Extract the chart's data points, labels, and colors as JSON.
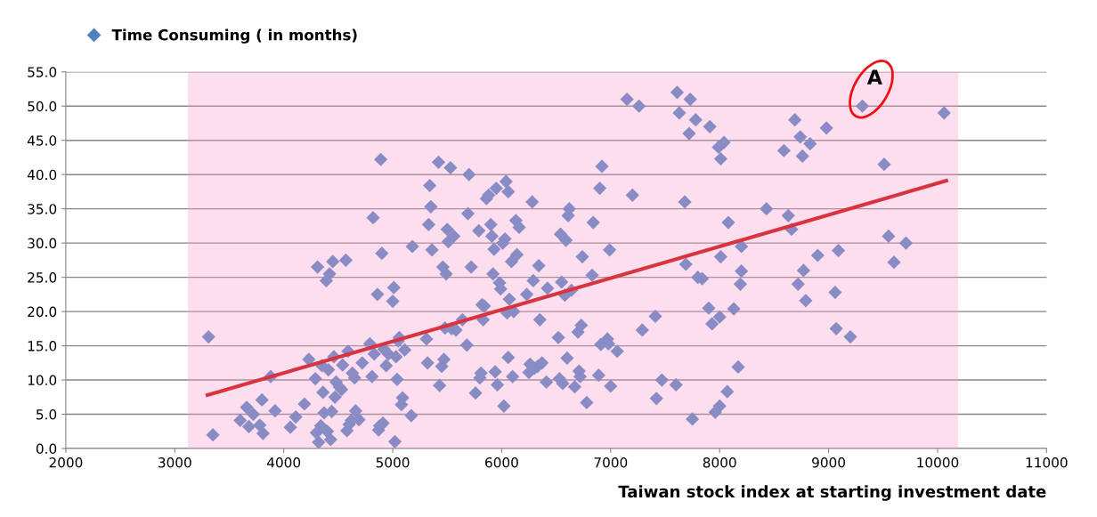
{
  "chart_data": {
    "type": "scatter",
    "xlabel": "Taiwan stock index at starting investment date",
    "xlim": [
      2000,
      11000
    ],
    "xticks": [
      2000,
      3000,
      4000,
      5000,
      6000,
      7000,
      8000,
      9000,
      10000,
      11000
    ],
    "ylim": [
      0,
      55
    ],
    "yticks": [
      {
        "value": 0,
        "label": "0.0"
      },
      {
        "value": 5,
        "label": "5.0"
      },
      {
        "value": 10,
        "label": "10.0"
      },
      {
        "value": 15,
        "label": "15.0"
      },
      {
        "value": 20,
        "label": "20.0"
      },
      {
        "value": 25,
        "label": "25.0"
      },
      {
        "value": 30,
        "label": "30.0"
      },
      {
        "value": 35,
        "label": "35.0"
      },
      {
        "value": 40,
        "label": "40.0"
      },
      {
        "value": 45,
        "label": "45.0"
      },
      {
        "value": 50,
        "label": "50.0"
      },
      {
        "value": 55,
        "label": "55.0"
      }
    ],
    "grid": "y",
    "legend": "top left",
    "marker": "diamond",
    "series": [
      {
        "name": "Time Consuming ( in months)",
        "color": "#4f81bd",
        "x": [
          3310,
          3350,
          3600,
          3660,
          3680,
          3720,
          3780,
          3800,
          3810,
          3880,
          3920,
          4060,
          4110,
          4190,
          4230,
          4290,
          4300,
          4310,
          4320,
          4340,
          4350,
          4360,
          4370,
          4390,
          4400,
          4410,
          4420,
          4430,
          4440,
          4450,
          4460,
          4470,
          4480,
          4510,
          4530,
          4540,
          4570,
          4580,
          4590,
          4600,
          4620,
          4630,
          4650,
          4660,
          4690,
          4720,
          4790,
          4810,
          4820,
          4830,
          4860,
          4870,
          4880,
          4890,
          4900,
          4910,
          4920,
          4940,
          4960,
          5000,
          5010,
          5020,
          5030,
          5040,
          5050,
          5060,
          5080,
          5090,
          5110,
          5170,
          5180,
          5310,
          5320,
          5330,
          5340,
          5350,
          5360,
          5420,
          5430,
          5450,
          5460,
          5470,
          5480,
          5490,
          5500,
          5510,
          5530,
          5540,
          5560,
          5580,
          5640,
          5680,
          5690,
          5700,
          5720,
          5760,
          5790,
          5800,
          5810,
          5820,
          5830,
          5840,
          5860,
          5880,
          5900,
          5910,
          5920,
          5930,
          5940,
          5950,
          5960,
          5980,
          5990,
          6010,
          6020,
          6030,
          6040,
          6050,
          6060,
          6060,
          6070,
          6090,
          6100,
          6110,
          6130,
          6140,
          6160,
          6230,
          6250,
          6260,
          6280,
          6290,
          6300,
          6330,
          6340,
          6350,
          6370,
          6410,
          6420,
          6520,
          6530,
          6540,
          6550,
          6560,
          6580,
          6590,
          6600,
          6610,
          6620,
          6640,
          6670,
          6700,
          6710,
          6720,
          6730,
          6740,
          6780,
          6830,
          6840,
          6890,
          6900,
          6910,
          6920,
          6970,
          6980,
          6990,
          7000,
          7060,
          7150,
          7200,
          7260,
          7290,
          7410,
          7420,
          7470,
          7600,
          7610,
          7630,
          7680,
          7690,
          7720,
          7730,
          7750,
          7780,
          7800,
          7840,
          7900,
          7910,
          7930,
          7960,
          7990,
          8000,
          8000,
          8010,
          8010,
          8040,
          8070,
          8080,
          8130,
          8170,
          8190,
          8200,
          8200,
          8430,
          8590,
          8630,
          8660,
          8690,
          8720,
          8740,
          8760,
          8770,
          8790,
          8830,
          8900,
          8980,
          9060,
          9070,
          9090,
          9200,
          9310,
          9510,
          9550,
          9600,
          9710,
          10060
        ],
        "values": [
          16.3,
          2.0,
          4.1,
          6.0,
          3.2,
          5.0,
          3.4,
          7.1,
          2.2,
          10.5,
          5.5,
          3.1,
          4.6,
          6.5,
          13.0,
          10.2,
          2.3,
          26.5,
          0.9,
          3.3,
          12.1,
          8.2,
          5.2,
          24.5,
          2.5,
          11.5,
          25.5,
          1.3,
          5.4,
          27.3,
          13.4,
          7.5,
          9.7,
          9.0,
          8.6,
          12.2,
          27.5,
          2.6,
          14.2,
          3.5,
          4.1,
          11.0,
          10.3,
          5.5,
          4.2,
          12.5,
          15.3,
          10.5,
          33.7,
          13.8,
          22.5,
          2.7,
          3.3,
          42.2,
          28.5,
          3.7,
          14.5,
          12.1,
          13.8,
          21.5,
          23.5,
          1.0,
          13.4,
          10.1,
          15.7,
          16.2,
          6.4,
          7.4,
          14.4,
          4.8,
          29.5,
          16.0,
          12.5,
          32.7,
          38.4,
          35.3,
          29.0,
          41.8,
          9.2,
          12.0,
          26.5,
          13.0,
          17.6,
          25.5,
          32.0,
          30.2,
          41.0,
          17.5,
          31.0,
          17.3,
          18.8,
          15.1,
          34.3,
          40.0,
          26.5,
          8.1,
          31.8,
          10.3,
          11.0,
          21.0,
          18.8,
          20.8,
          36.5,
          37.0,
          32.7,
          31.0,
          25.5,
          29.1,
          11.2,
          38.0,
          9.3,
          24.2,
          23.3,
          30.0,
          6.2,
          30.6,
          39.0,
          19.8,
          13.3,
          37.5,
          21.8,
          27.3,
          10.5,
          20.0,
          33.3,
          28.3,
          32.3,
          22.5,
          11.1,
          12.3,
          36.0,
          24.5,
          11.7,
          12.0,
          26.7,
          18.8,
          12.5,
          9.7,
          23.4,
          16.2,
          10.2,
          31.3,
          24.3,
          9.5,
          22.4,
          30.4,
          13.2,
          34.0,
          35.0,
          23.1,
          9.0,
          17.0,
          11.3,
          10.5,
          18.0,
          28.0,
          6.7,
          25.3,
          33.0,
          10.7,
          38.0,
          15.2,
          41.2,
          16.0,
          15.3,
          29.0,
          9.1,
          14.2,
          51.0,
          37.0,
          50.0,
          17.3,
          19.3,
          7.3,
          10.0,
          9.3,
          52.0,
          49.0,
          36.0,
          26.9,
          46.0,
          51.0,
          4.3,
          48.0,
          25.0,
          24.8,
          20.5,
          47.0,
          18.2,
          5.3,
          44.0,
          6.2,
          19.2,
          42.3,
          28.0,
          44.7,
          8.3,
          33.0,
          20.4,
          11.9,
          24.0,
          29.5,
          25.9,
          35.0,
          43.5,
          34.0,
          32.0,
          48.0,
          24.0,
          45.5,
          42.7,
          26.0,
          21.6,
          44.5,
          28.2,
          46.8,
          22.8,
          17.5,
          28.9,
          16.3,
          50.0,
          41.5,
          31.0,
          27.2,
          30.0,
          49.0
        ]
      },
      {
        "type": "line",
        "marker": "none",
        "color": "#d9333f",
        "x": [
          3300,
          10080
        ],
        "values": [
          7.8,
          39.1
        ]
      }
    ],
    "bands": [
      {
        "axis": "x",
        "from": 3120,
        "to": 10190,
        "color": "#f7a0d0"
      }
    ],
    "annotations": [
      {
        "text": "A",
        "x": 9310,
        "y": 50
      }
    ]
  }
}
